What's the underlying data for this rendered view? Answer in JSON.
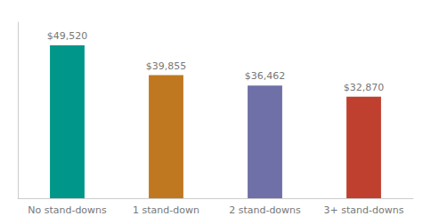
{
  "chart_data": {
    "type": "bar",
    "categories": [
      "No stand-downs",
      "1 stand-down",
      "2 stand-downs",
      "3+ stand-downs"
    ],
    "values": [
      49520,
      39855,
      36462,
      32870
    ],
    "value_labels": [
      "$49,520",
      "$39,855",
      "$36,462",
      "$32,870"
    ],
    "colors": [
      "#00968A",
      "#C07820",
      "#7070A8",
      "#C04030"
    ],
    "ylim": [
      0,
      57000
    ],
    "data_labels": true,
    "tick_labels": "x",
    "grid": false
  }
}
